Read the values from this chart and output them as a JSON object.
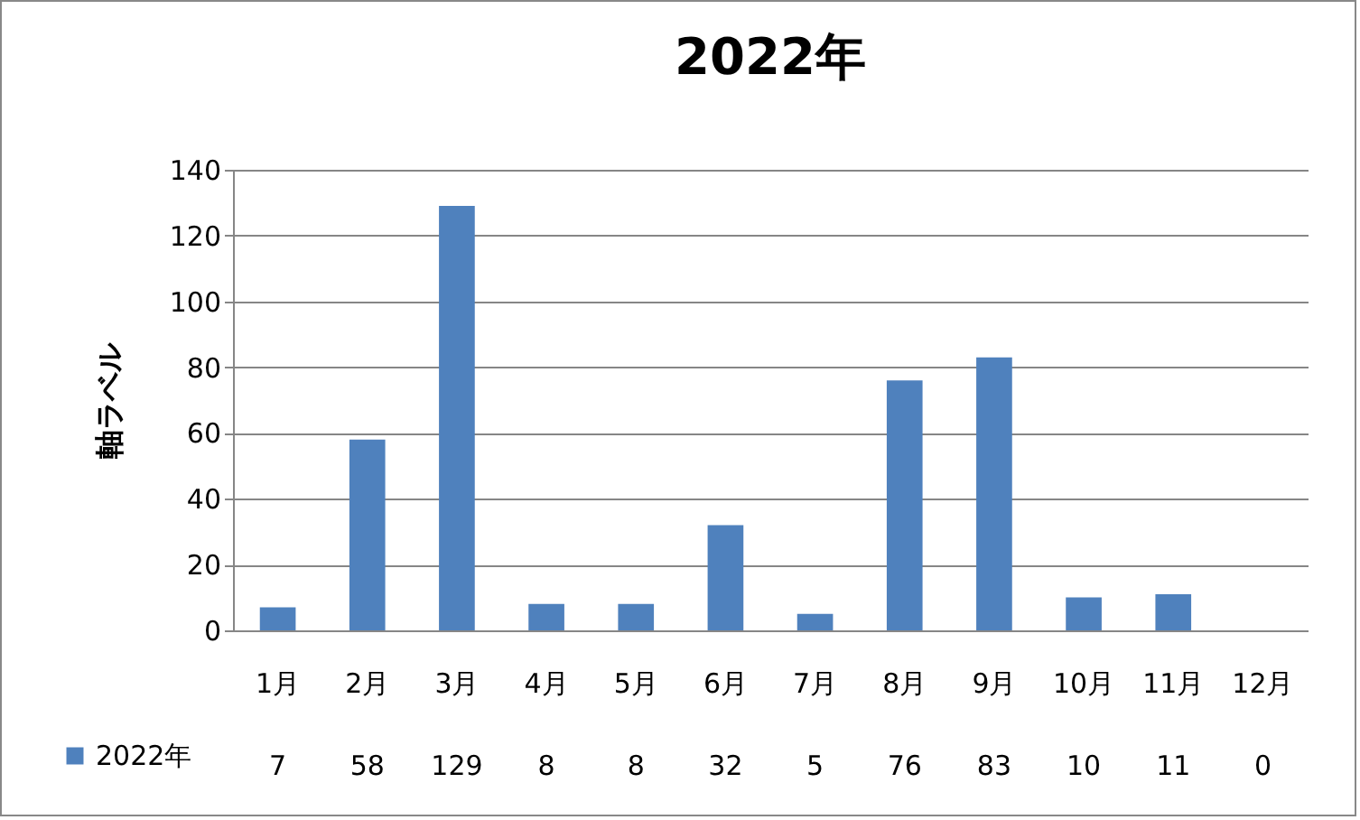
{
  "chart_data": {
    "type": "bar",
    "title": "2022年",
    "ylabel": "軸ラベル",
    "categories": [
      "1月",
      "2月",
      "3月",
      "4月",
      "5月",
      "6月",
      "7月",
      "8月",
      "9月",
      "10月",
      "11月",
      "12月"
    ],
    "series": [
      {
        "name": "2022年",
        "color": "#4f81bd",
        "values": [
          7,
          58,
          129,
          8,
          8,
          32,
          5,
          76,
          83,
          10,
          11,
          0
        ]
      }
    ],
    "ylim": [
      0,
      140
    ],
    "yticks": [
      0,
      20,
      40,
      60,
      80,
      100,
      120,
      140
    ],
    "grid": "y",
    "legend": "bottom left",
    "data_labels": true
  }
}
